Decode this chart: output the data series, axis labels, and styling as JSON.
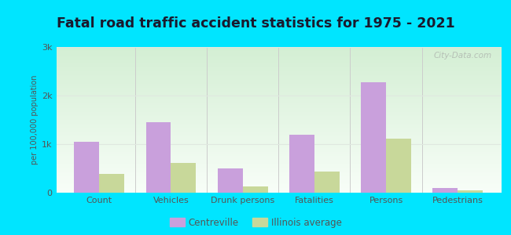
{
  "title": "Fatal road traffic accident statistics for 1975 - 2021",
  "categories": [
    "Count",
    "Vehicles",
    "Drunk persons",
    "Fatalities",
    "Persons",
    "Pedestrians"
  ],
  "centreville": [
    1050,
    1450,
    500,
    1200,
    2280,
    90
  ],
  "illinois_avg": [
    380,
    620,
    130,
    430,
    1120,
    55
  ],
  "ylim": [
    0,
    3000
  ],
  "yticks": [
    0,
    1000,
    2000,
    3000
  ],
  "ytick_labels": [
    "0",
    "1k",
    "2k",
    "3k"
  ],
  "ylabel": "per 100,000 population",
  "centreville_color": "#c9a0dc",
  "illinois_color": "#c8d89a",
  "bar_width": 0.35,
  "outer_bg": "#00e5ff",
  "watermark": "City-Data.com",
  "legend_centreville": "Centreville",
  "legend_illinois": "Illinois average",
  "title_color": "#1a1a2e",
  "tick_color": "#555555",
  "grid_color": "#e0e8e0",
  "separator_color": "#cccccc"
}
